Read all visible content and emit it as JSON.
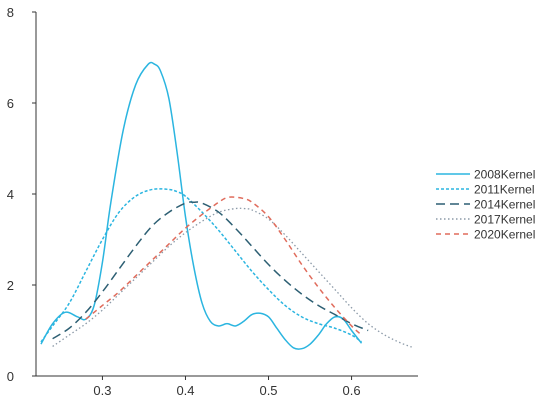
{
  "chart_data": {
    "type": "line",
    "title": "",
    "xlabel": "",
    "ylabel": "",
    "xlim": [
      0.22,
      0.68
    ],
    "ylim": [
      0,
      8
    ],
    "x_ticks": [
      "0.3",
      "0.4",
      "0.5",
      "0.6"
    ],
    "y_ticks": [
      "0",
      "2",
      "4",
      "6",
      "8"
    ],
    "grid": false,
    "legend_position": "right",
    "series": [
      {
        "name": "2008Kernel",
        "color": "#2bb5e0",
        "dash": "solid",
        "x": [
          0.226,
          0.24,
          0.255,
          0.27,
          0.28,
          0.29,
          0.3,
          0.31,
          0.325,
          0.34,
          0.355,
          0.363,
          0.37,
          0.38,
          0.39,
          0.4,
          0.41,
          0.42,
          0.43,
          0.44,
          0.45,
          0.46,
          0.47,
          0.48,
          0.49,
          0.5,
          0.51,
          0.52,
          0.53,
          0.54,
          0.55,
          0.56,
          0.57,
          0.58,
          0.59,
          0.6,
          0.612
        ],
        "values": [
          0.7,
          1.15,
          1.4,
          1.3,
          1.25,
          1.55,
          2.5,
          3.8,
          5.4,
          6.4,
          6.85,
          6.85,
          6.7,
          6.1,
          4.9,
          3.5,
          2.4,
          1.6,
          1.2,
          1.1,
          1.15,
          1.1,
          1.2,
          1.35,
          1.38,
          1.3,
          1.05,
          0.8,
          0.62,
          0.6,
          0.7,
          0.9,
          1.15,
          1.3,
          1.25,
          1.0,
          0.72
        ]
      },
      {
        "name": "2011Kernel",
        "color": "#2bb5e0",
        "dash": "dense-dash",
        "x": [
          0.226,
          0.24,
          0.26,
          0.28,
          0.3,
          0.32,
          0.34,
          0.36,
          0.38,
          0.39,
          0.4,
          0.42,
          0.44,
          0.46,
          0.48,
          0.5,
          0.52,
          0.54,
          0.56,
          0.58,
          0.6,
          0.612
        ],
        "values": [
          0.75,
          1.1,
          1.6,
          2.3,
          3.0,
          3.6,
          3.95,
          4.1,
          4.1,
          4.05,
          3.95,
          3.6,
          3.2,
          2.75,
          2.3,
          1.9,
          1.55,
          1.3,
          1.15,
          1.05,
          0.9,
          0.75
        ]
      },
      {
        "name": "2014Kernel",
        "color": "#2d5f73",
        "dash": "long-dash",
        "x": [
          0.24,
          0.26,
          0.28,
          0.3,
          0.32,
          0.34,
          0.36,
          0.38,
          0.4,
          0.41,
          0.42,
          0.44,
          0.46,
          0.48,
          0.5,
          0.52,
          0.54,
          0.56,
          0.58,
          0.6,
          0.62
        ],
        "values": [
          0.82,
          1.05,
          1.4,
          1.85,
          2.35,
          2.85,
          3.3,
          3.6,
          3.8,
          3.82,
          3.8,
          3.6,
          3.25,
          2.85,
          2.45,
          2.1,
          1.8,
          1.55,
          1.35,
          1.15,
          1.0
        ]
      },
      {
        "name": "2017Kernel",
        "color": "#8c9aa8",
        "dash": "dotted",
        "x": [
          0.24,
          0.26,
          0.28,
          0.3,
          0.32,
          0.34,
          0.36,
          0.38,
          0.4,
          0.42,
          0.44,
          0.46,
          0.47,
          0.48,
          0.5,
          0.52,
          0.54,
          0.56,
          0.58,
          0.6,
          0.62,
          0.64,
          0.66,
          0.675
        ],
        "values": [
          0.65,
          0.9,
          1.15,
          1.45,
          1.8,
          2.15,
          2.5,
          2.85,
          3.15,
          3.4,
          3.6,
          3.68,
          3.68,
          3.65,
          3.45,
          3.1,
          2.7,
          2.3,
          1.9,
          1.5,
          1.15,
          0.9,
          0.72,
          0.62
        ]
      },
      {
        "name": "2020Kernel",
        "color": "#e06c5c",
        "dash": "short-dash",
        "x": [
          0.28,
          0.3,
          0.32,
          0.34,
          0.36,
          0.38,
          0.4,
          0.42,
          0.44,
          0.45,
          0.46,
          0.47,
          0.48,
          0.5,
          0.52,
          0.54,
          0.56,
          0.58,
          0.6,
          0.612
        ],
        "values": [
          1.25,
          1.55,
          1.85,
          2.2,
          2.55,
          2.9,
          3.25,
          3.55,
          3.82,
          3.92,
          3.93,
          3.9,
          3.82,
          3.5,
          3.0,
          2.45,
          1.95,
          1.5,
          1.1,
          0.9
        ]
      }
    ]
  }
}
